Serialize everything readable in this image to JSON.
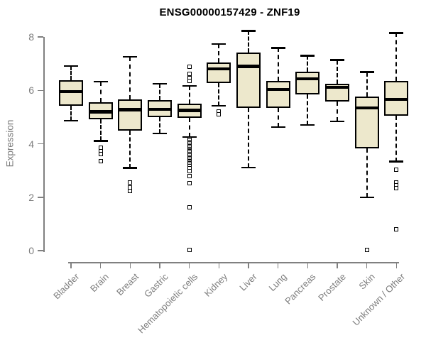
{
  "colors": {
    "background": "#ffffff",
    "box_fill": "#EDE8CC",
    "box_stroke": "#000000",
    "axis": "#808080",
    "tick_label": "#7d7d7d",
    "title": "#000000"
  },
  "chart_data": {
    "type": "boxplot",
    "title": "ENSG00000157429 - ZNF19",
    "xlabel": "",
    "ylabel": "Expression",
    "ylim": [
      0,
      8
    ],
    "yticks": [
      0,
      2,
      4,
      6,
      8
    ],
    "grid": false,
    "legend": "none",
    "categories": [
      "Bladder",
      "Brain",
      "Breast",
      "Gastric",
      "Hematopoietic cells",
      "Kidney",
      "Liver",
      "Lung",
      "Pancreas",
      "Prostate",
      "Skin",
      "Unknown / Other"
    ],
    "boxes": [
      {
        "label": "Bladder",
        "whisker_low": 4.87,
        "q1": 5.42,
        "median": 5.95,
        "q3": 6.39,
        "whisker_high": 6.91,
        "outliers": []
      },
      {
        "label": "Brain",
        "whisker_low": 4.11,
        "q1": 4.91,
        "median": 5.2,
        "q3": 5.56,
        "whisker_high": 6.33,
        "outliers": [
          3.85,
          3.71,
          3.62,
          3.36
        ]
      },
      {
        "label": "Breast",
        "whisker_low": 3.09,
        "q1": 4.49,
        "median": 5.27,
        "q3": 5.66,
        "whisker_high": 7.26,
        "outliers": [
          2.56,
          2.36,
          2.23
        ]
      },
      {
        "label": "Gastric",
        "whisker_low": 4.38,
        "q1": 5.0,
        "median": 5.29,
        "q3": 5.63,
        "whisker_high": 6.24,
        "outliers": []
      },
      {
        "label": "Hematopoietic cells",
        "whisker_low": 4.25,
        "q1": 4.98,
        "median": 5.25,
        "q3": 5.51,
        "whisker_high": 6.17,
        "outliers": [
          6.88,
          6.62,
          6.47,
          6.35,
          4.16,
          4.11,
          4.06,
          4.01,
          3.96,
          3.91,
          3.86,
          3.81,
          3.76,
          3.71,
          3.66,
          3.61,
          3.56,
          3.51,
          3.46,
          3.41,
          3.36,
          3.31,
          3.26,
          3.21,
          3.16,
          3.08,
          2.97,
          2.78,
          2.52,
          1.63,
          0.03
        ]
      },
      {
        "label": "Kidney",
        "whisker_low": 5.42,
        "q1": 6.28,
        "median": 6.8,
        "q3": 7.04,
        "whisker_high": 7.74,
        "outliers": [
          5.22,
          5.09
        ]
      },
      {
        "label": "Liver",
        "whisker_low": 3.11,
        "q1": 5.35,
        "median": 6.9,
        "q3": 7.41,
        "whisker_high": 8.23,
        "outliers": []
      },
      {
        "label": "Lung",
        "whisker_low": 4.62,
        "q1": 5.35,
        "median": 6.03,
        "q3": 6.35,
        "whisker_high": 7.59,
        "outliers": []
      },
      {
        "label": "Pancreas",
        "whisker_low": 4.7,
        "q1": 5.86,
        "median": 6.43,
        "q3": 6.71,
        "whisker_high": 7.3,
        "outliers": []
      },
      {
        "label": "Prostate",
        "whisker_low": 4.84,
        "q1": 5.58,
        "median": 6.11,
        "q3": 6.24,
        "whisker_high": 7.13,
        "outliers": []
      },
      {
        "label": "Skin",
        "whisker_low": 2.0,
        "q1": 3.82,
        "median": 5.34,
        "q3": 5.77,
        "whisker_high": 6.68,
        "outliers": [
          0.02
        ]
      },
      {
        "label": "Unknown / Other",
        "whisker_low": 3.33,
        "q1": 5.04,
        "median": 5.66,
        "q3": 6.35,
        "whisker_high": 8.15,
        "outliers": [
          3.03,
          2.55,
          2.44,
          2.33,
          0.79
        ]
      }
    ]
  }
}
